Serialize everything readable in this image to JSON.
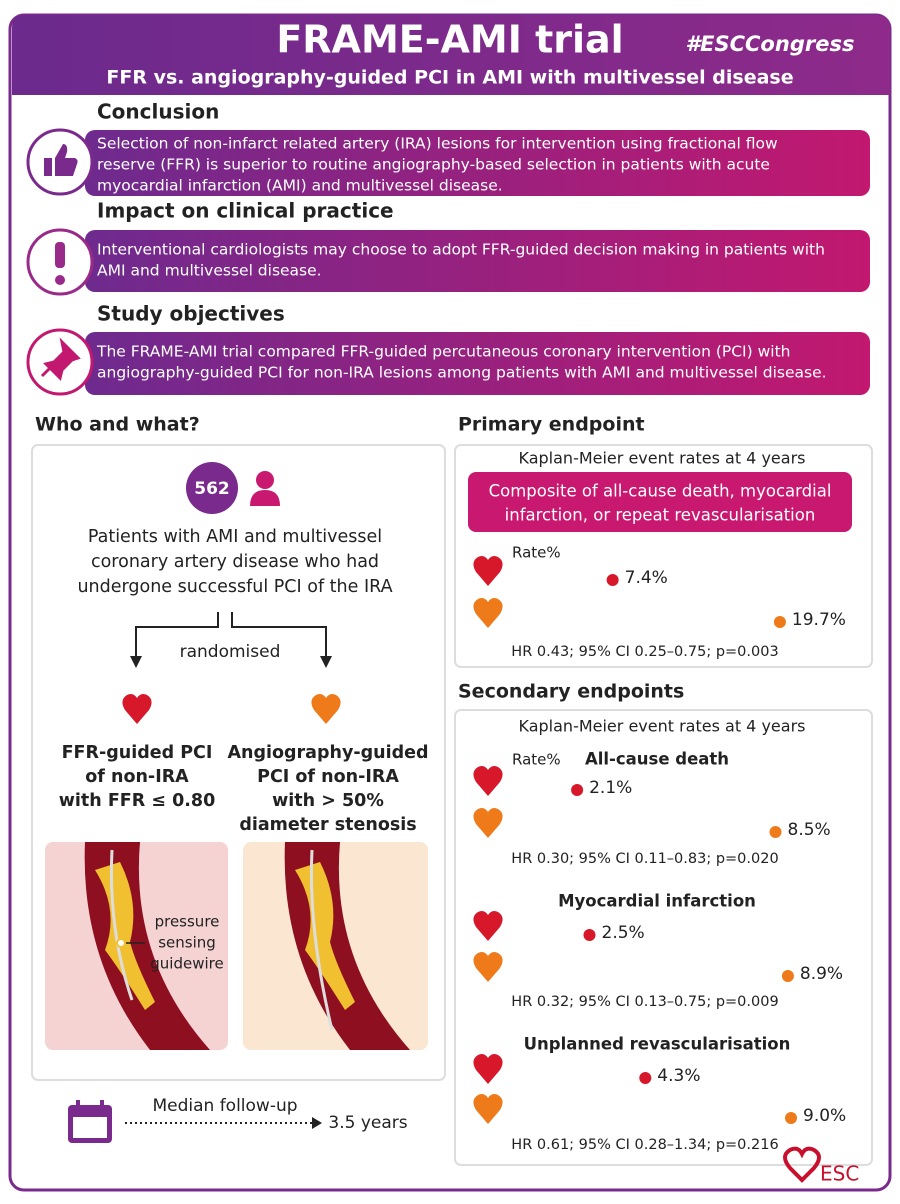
{
  "header": {
    "title": "FRAME-AMI trial",
    "hashtag": "#ESCCongress",
    "subtitle": "FFR vs. angiography-guided PCI in AMI with multivessel disease"
  },
  "sections": [
    {
      "heading": "Conclusion",
      "lines": [
        "Selection of non-infarct related artery (IRA) lesions for intervention using fractional flow",
        "reserve (FFR) is superior to routine angiography-based selection in patients with acute",
        "myocardial infarction (AMI) and multivessel disease."
      ]
    },
    {
      "heading": "Impact on clinical practice",
      "lines": [
        "Interventional cardiologists may choose to adopt FFR-guided decision making in patients with",
        "AMI and multivessel disease."
      ]
    },
    {
      "heading": "Study objectives",
      "lines": [
        "The FRAME-AMI trial compared FFR-guided percutaneous coronary intervention (PCI) with",
        "angiography-guided PCI for non-IRA lesions among patients with AMI and multivessel disease."
      ]
    }
  ],
  "who": {
    "heading": "Who and what?",
    "count": 562,
    "description": [
      "Patients with AMI and multivessel",
      "coronary artery disease who had",
      "undergone successful PCI of the IRA"
    ],
    "randomised": "randomised",
    "arms": [
      {
        "lines": [
          "FFR-guided PCI",
          "of non-IRA",
          "with FFR ≤ 0.80"
        ]
      },
      {
        "lines": [
          "Angiography-guided",
          "PCI of non-IRA",
          "with > 50%",
          "diameter stenosis"
        ]
      }
    ],
    "guidewire": [
      "pressure",
      "sensing",
      "guidewire"
    ],
    "followup_label": "Median follow-up",
    "followup_value": "3.5 years"
  },
  "primary": {
    "heading": "Primary endpoint",
    "subheading": "Kaplan-Meier event rates at 4 years",
    "box": [
      "Composite of all-cause death, myocardial",
      "infarction, or repeat revascularisation"
    ],
    "rate_label": "Rate%",
    "values": [
      7.4,
      19.7
    ],
    "value_labels": [
      "7.4%",
      "19.7%"
    ],
    "stats": "HR 0.43; 95% CI 0.25–0.75; p=0.003"
  },
  "secondary": {
    "heading": "Secondary endpoints",
    "subheading": "Kaplan-Meier event rates at 4 years",
    "rate_label": "Rate%",
    "endpoints": [
      {
        "name": "All-cause death",
        "values": [
          2.1,
          8.5
        ],
        "value_labels": [
          "2.1%",
          "8.5%"
        ],
        "stats": "HR 0.30; 95% CI 0.11–0.83; p=0.020"
      },
      {
        "name": "Myocardial infarction",
        "values": [
          2.5,
          8.9
        ],
        "value_labels": [
          "2.5%",
          "8.9%"
        ],
        "stats": "HR 0.32; 95% CI 0.13–0.75; p=0.009"
      },
      {
        "name": "Unplanned revascularisation",
        "values": [
          4.3,
          9.0
        ],
        "value_labels": [
          "4.3%",
          "9.0%"
        ],
        "stats": "HR 0.61; 95% CI 0.28–1.34; p=0.216"
      }
    ]
  },
  "footer": {
    "logo": "ESC"
  }
}
